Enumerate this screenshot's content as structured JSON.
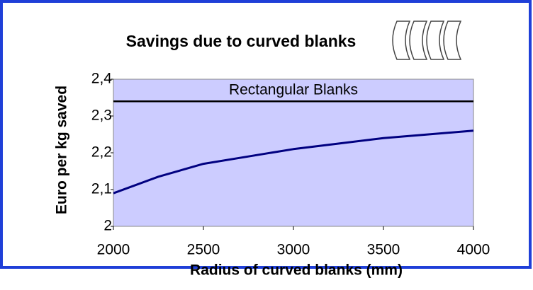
{
  "chart_data": {
    "type": "line",
    "title": "Savings due to curved blanks",
    "xlabel": "Radius of curved blanks (mm)",
    "ylabel": "Euro per kg saved",
    "x": [
      2000,
      2250,
      2500,
      2750,
      3000,
      3250,
      3500,
      3750,
      4000
    ],
    "series": [
      {
        "color": "#000080",
        "values": [
          2.09,
          2.135,
          2.17,
          2.19,
          2.21,
          2.225,
          2.24,
          2.25,
          2.26
        ]
      }
    ],
    "reference_line": {
      "label": "Rectangular Blanks",
      "value": 2.34,
      "color": "#000000"
    },
    "plot_color": "#ccccff",
    "xlim": [
      2000,
      4000
    ],
    "xticks": [
      2000,
      2500,
      3000,
      3500,
      4000
    ],
    "ylim": [
      2,
      2.4
    ],
    "yticks": [
      2,
      {
        "value": 2.1,
        "label": "2,1"
      },
      {
        "value": 2.2,
        "label": "2,2"
      },
      {
        "value": 2.3,
        "label": "2,3"
      },
      {
        "value": 2.4,
        "label": "2,4"
      }
    ]
  }
}
